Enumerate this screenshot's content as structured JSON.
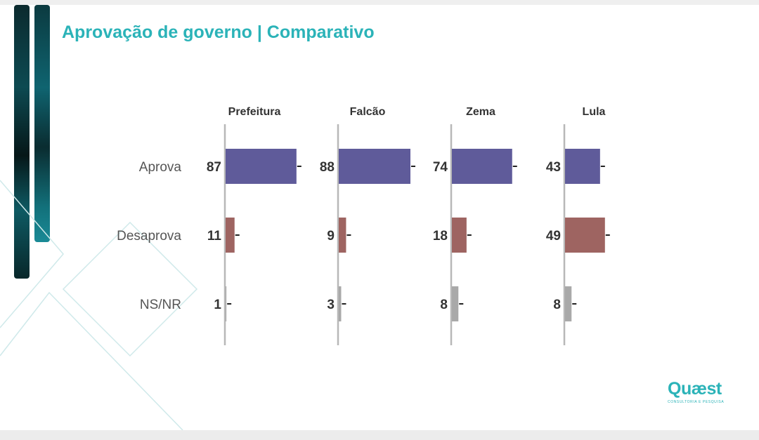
{
  "title": "Aprovação de governo | Comparativo",
  "brand": {
    "name": "Quæst",
    "tagline": "CONSULTORIA E PESQUISA"
  },
  "colors": {
    "title": "#2bb3b8",
    "aprova": "#5f5b9a",
    "desaprova": "#9e6461",
    "nsnr": "#a9a9a9",
    "axis": "#b8b8b8"
  },
  "chart_data": {
    "type": "bar",
    "orientation": "horizontal",
    "title": "Aprovação de governo | Comparativo",
    "categories": [
      "Aprova",
      "Desaprova",
      "NS/NR"
    ],
    "panels": [
      {
        "name": "Prefeitura",
        "values": [
          87,
          11,
          1
        ]
      },
      {
        "name": "Falcão",
        "values": [
          88,
          9,
          3
        ]
      },
      {
        "name": "Zema",
        "values": [
          74,
          18,
          8
        ]
      },
      {
        "name": "Lula",
        "values": [
          43,
          49,
          8
        ]
      }
    ],
    "xlim": [
      0,
      100
    ],
    "grid": false,
    "legend": "none"
  }
}
